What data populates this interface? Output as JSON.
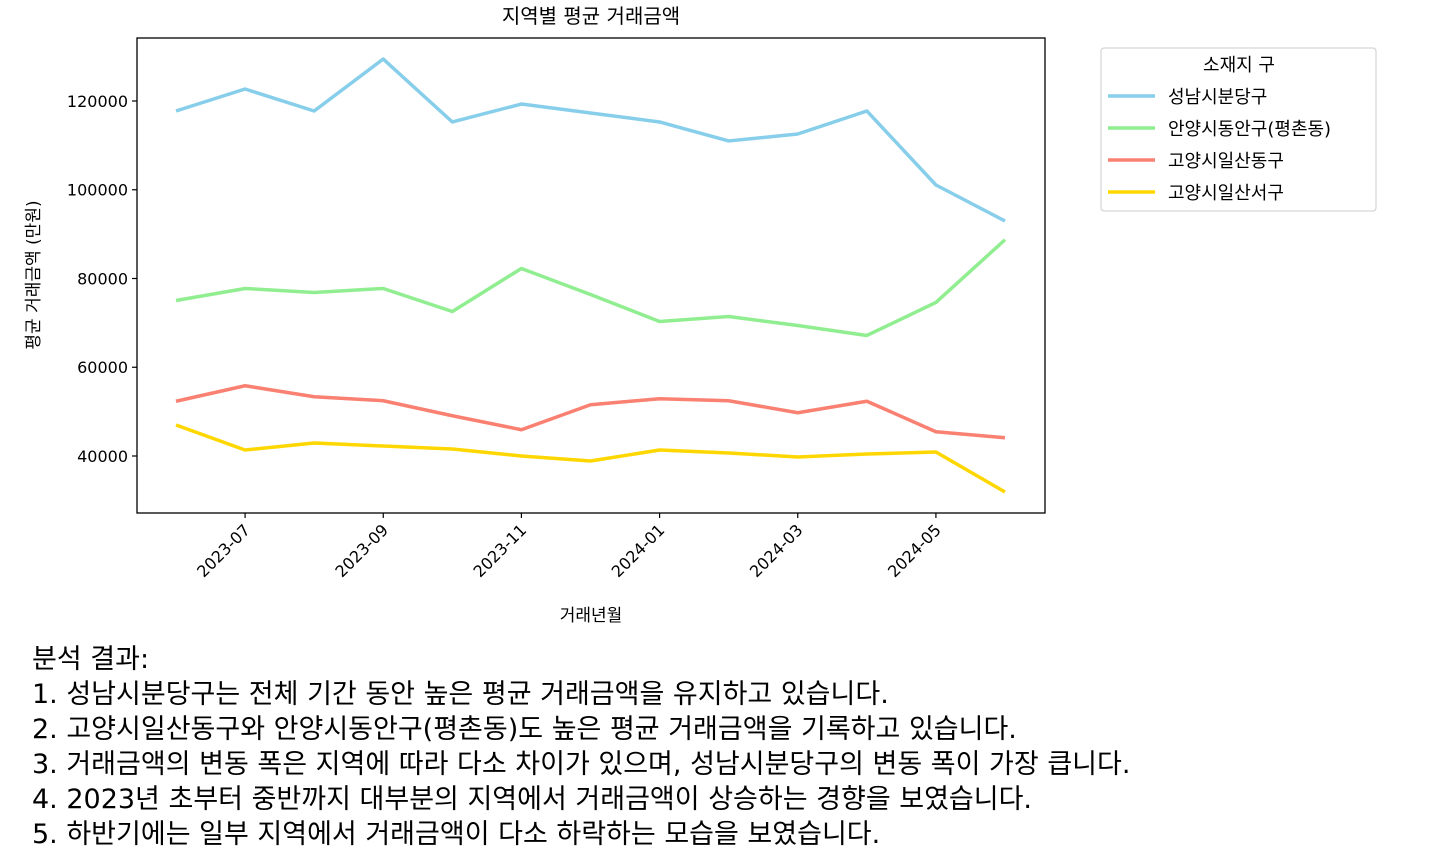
{
  "chart_data": {
    "type": "line",
    "title": "지역별 평균 거래금액",
    "xlabel": "거래년월",
    "ylabel": "평균 거래금액 (만원)",
    "x": [
      "2023-06",
      "2023-07",
      "2023-08",
      "2023-09",
      "2023-10",
      "2023-11",
      "2023-12",
      "2024-01",
      "2024-02",
      "2024-03",
      "2024-04",
      "2024-05",
      "2024-06"
    ],
    "x_tick_labels": [
      "2023-07",
      "2023-09",
      "2023-11",
      "2024-01",
      "2024-03",
      "2024-05"
    ],
    "y_ticks": [
      40000,
      60000,
      80000,
      100000,
      120000
    ],
    "ylim": [
      27155,
      134197
    ],
    "grid": false,
    "legend": {
      "title": "소재지 구",
      "placement": "outside-top-right"
    },
    "series": [
      {
        "name": "성남시분당구",
        "color": "#87CEEB",
        "values": [
          117750,
          122700,
          117750,
          129460,
          115270,
          119320,
          117300,
          115270,
          111000,
          112560,
          117750,
          101070,
          92960
        ]
      },
      {
        "name": "안양시동안구(평촌동)",
        "color": "#90EE90",
        "values": [
          75040,
          77750,
          76850,
          77750,
          72560,
          82250,
          76400,
          70310,
          71440,
          69410,
          67160,
          74600,
          88730
        ]
      },
      {
        "name": "고양시일산동구",
        "color": "#FA8072",
        "values": [
          52340,
          55830,
          53350,
          52450,
          49070,
          45920,
          51550,
          52900,
          52450,
          49750,
          52340,
          45470,
          44110
        ]
      },
      {
        "name": "고양시일산서구",
        "color": "#FFD700",
        "values": [
          46990,
          41350,
          42930,
          42250,
          41580,
          40000,
          38870,
          41350,
          40680,
          39770,
          40450,
          40900,
          31890
        ]
      }
    ]
  },
  "analysis": {
    "heading": "분석 결과:",
    "lines": [
      "1. 성남시분당구는 전체 기간 동안 높은 평균 거래금액을 유지하고 있습니다.",
      "2. 고양시일산동구와 안양시동안구(평촌동)도 높은 평균 거래금액을 기록하고 있습니다.",
      "3. 거래금액의 변동 폭은 지역에 따라 다소 차이가 있으며, 성남시분당구의 변동 폭이 가장 큽니다.",
      "4. 2023년 초부터 중반까지 대부분의 지역에서 거래금액이 상승하는 경향을 보였습니다.",
      "5. 하반기에는 일부 지역에서 거래금액이 다소 하락하는 모습을 보였습니다."
    ]
  }
}
